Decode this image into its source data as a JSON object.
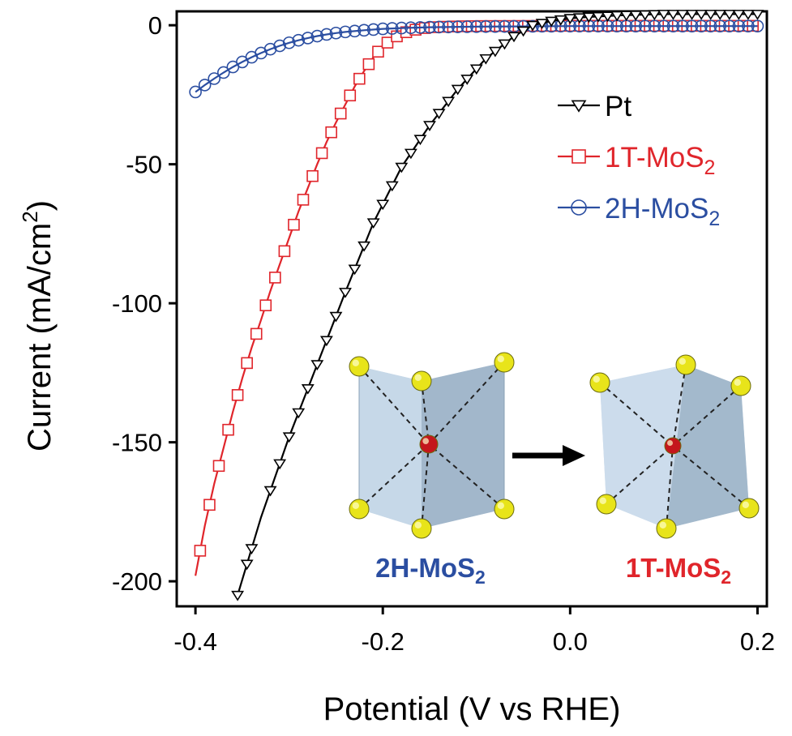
{
  "chart_data": {
    "type": "line",
    "xlabel": "Potential (V vs RHE)",
    "ylabel": "Current (mA/cm",
    "ylabel_sup": "2",
    "ylabel_close": ")",
    "xlim": [
      -0.42,
      0.21
    ],
    "ylim": [
      -209,
      5
    ],
    "xticks": [
      -0.4,
      -0.2,
      0.0,
      0.2
    ],
    "xtick_labels": [
      "-0.4",
      "-0.2",
      "0.0",
      "0.2"
    ],
    "yticks": [
      0,
      -50,
      -100,
      -150,
      -200
    ],
    "ytick_labels": [
      "0",
      "-50",
      "-100",
      "-150",
      "-200"
    ],
    "legend_position": "top-right",
    "series": [
      {
        "name": "Pt",
        "label_parts": [
          "Pt",
          ""
        ],
        "color": "#000000",
        "marker": "down-triangle",
        "x": [
          -0.355,
          -0.33,
          -0.3,
          -0.27,
          -0.24,
          -0.21,
          -0.18,
          -0.15,
          -0.12,
          -0.09,
          -0.06,
          -0.04,
          -0.02,
          0.0,
          0.02,
          0.05,
          0.1,
          0.15,
          0.2
        ],
        "y": [
          -205,
          -177,
          -148,
          -122,
          -96,
          -71,
          -51,
          -36,
          -23,
          -12,
          -4,
          0,
          1.5,
          2.5,
          3,
          3.5,
          4,
          4,
          4
        ],
        "marker_x": [
          -0.355,
          -0.345,
          -0.34,
          -0.32,
          -0.31,
          -0.3,
          -0.29,
          -0.28,
          -0.27,
          -0.26,
          -0.25,
          -0.24,
          -0.23,
          -0.22,
          -0.21,
          -0.2,
          -0.19,
          -0.18,
          -0.17,
          -0.16,
          -0.15,
          -0.14,
          -0.13,
          -0.12,
          -0.11,
          -0.1,
          -0.09,
          -0.08,
          -0.07,
          -0.06,
          -0.05,
          -0.04,
          -0.03,
          -0.02,
          -0.01,
          0.0,
          0.01,
          0.02,
          0.03,
          0.04,
          0.05,
          0.06,
          0.07,
          0.08,
          0.09,
          0.1,
          0.11,
          0.12,
          0.13,
          0.14,
          0.15,
          0.16,
          0.17,
          0.18,
          0.19,
          0.2
        ]
      },
      {
        "name": "1T-MoS",
        "label_parts": [
          "1T-MoS",
          "2"
        ],
        "color": "#e0252b",
        "marker": "square",
        "x": [
          -0.4,
          -0.39,
          -0.38,
          -0.37,
          -0.36,
          -0.35,
          -0.34,
          -0.33,
          -0.32,
          -0.31,
          -0.3,
          -0.29,
          -0.28,
          -0.27,
          -0.26,
          -0.25,
          -0.24,
          -0.23,
          -0.22,
          -0.21,
          -0.2,
          -0.19,
          -0.18,
          -0.17,
          -0.16,
          -0.15,
          -0.14,
          -0.12,
          -0.1,
          0.0,
          0.1,
          0.2
        ],
        "y": [
          -198,
          -180,
          -165,
          -152,
          -139,
          -127,
          -116,
          -106,
          -95.5,
          -86,
          -76.5,
          -67,
          -58.5,
          -50,
          -42,
          -35,
          -28.5,
          -22,
          -16.5,
          -11.5,
          -7.5,
          -5,
          -3,
          -2,
          -1.2,
          -0.8,
          -0.6,
          -0.4,
          -0.3,
          -0.2,
          -0.2,
          -0.2
        ],
        "marker_x": [
          -0.395,
          -0.385,
          -0.375,
          -0.365,
          -0.355,
          -0.345,
          -0.335,
          -0.325,
          -0.315,
          -0.305,
          -0.295,
          -0.285,
          -0.275,
          -0.265,
          -0.255,
          -0.245,
          -0.235,
          -0.225,
          -0.215,
          -0.205,
          -0.195,
          -0.185,
          -0.175,
          -0.165,
          -0.155,
          -0.145,
          -0.135,
          -0.125,
          -0.115,
          -0.105,
          -0.095,
          -0.085,
          -0.075,
          -0.065,
          -0.055,
          -0.045,
          -0.035,
          -0.025,
          -0.015,
          -0.005,
          0.005,
          0.015,
          0.025,
          0.035,
          0.045,
          0.055,
          0.065,
          0.075,
          0.085,
          0.095,
          0.105,
          0.115,
          0.125,
          0.135,
          0.145,
          0.155,
          0.165,
          0.175,
          0.185,
          0.195
        ]
      },
      {
        "name": "2H-MoS",
        "label_parts": [
          "2H-MoS",
          "2"
        ],
        "color": "#2b4ea1",
        "marker": "circle",
        "x": [
          -0.4,
          -0.39,
          -0.38,
          -0.37,
          -0.36,
          -0.35,
          -0.34,
          -0.33,
          -0.32,
          -0.31,
          -0.3,
          -0.29,
          -0.28,
          -0.27,
          -0.26,
          -0.25,
          -0.24,
          -0.22,
          -0.2,
          -0.18,
          -0.15,
          -0.1,
          0.0,
          0.1,
          0.2
        ],
        "y": [
          -24,
          -21.5,
          -19.2,
          -17,
          -15,
          -13.2,
          -11.5,
          -10,
          -8.6,
          -7.4,
          -6.3,
          -5.4,
          -4.6,
          -3.9,
          -3.3,
          -2.8,
          -2.4,
          -1.8,
          -1.3,
          -1.0,
          -0.7,
          -0.5,
          -0.3,
          -0.3,
          -0.3
        ],
        "marker_x": [
          -0.4,
          -0.39,
          -0.38,
          -0.37,
          -0.36,
          -0.35,
          -0.34,
          -0.33,
          -0.32,
          -0.31,
          -0.3,
          -0.29,
          -0.28,
          -0.27,
          -0.26,
          -0.25,
          -0.24,
          -0.23,
          -0.22,
          -0.21,
          -0.2,
          -0.19,
          -0.18,
          -0.17,
          -0.16,
          -0.15,
          -0.14,
          -0.13,
          -0.12,
          -0.11,
          -0.1,
          -0.09,
          -0.08,
          -0.07,
          -0.06,
          -0.05,
          -0.04,
          -0.03,
          -0.02,
          -0.01,
          0.0,
          0.01,
          0.02,
          0.03,
          0.04,
          0.05,
          0.06,
          0.07,
          0.08,
          0.09,
          0.1,
          0.11,
          0.12,
          0.13,
          0.14,
          0.15,
          0.16,
          0.17,
          0.18,
          0.19,
          0.2
        ]
      }
    ],
    "inset": {
      "left_label": "2H-MoS",
      "left_sub": "2",
      "left_color": "#2b4ea1",
      "right_label": "1T-MoS",
      "right_sub": "2",
      "right_color": "#e0252b"
    }
  }
}
